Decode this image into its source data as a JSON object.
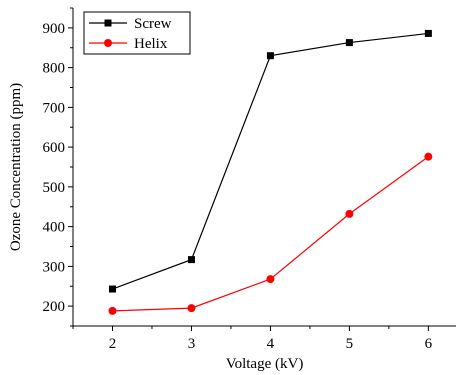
{
  "chart_data": {
    "type": "line",
    "title": "",
    "xlabel": "Voltage (kV)",
    "ylabel": "Ozone Concentration (ppm)",
    "x": [
      2,
      3,
      4,
      5,
      6
    ],
    "xticks": [
      "2",
      "3",
      "4",
      "5",
      "6"
    ],
    "yticks": [
      "200",
      "300",
      "400",
      "500",
      "600",
      "700",
      "800",
      "900"
    ],
    "xlim": [
      1.5,
      6.35
    ],
    "ylim": [
      150,
      950
    ],
    "grid": false,
    "legend_position": "top-left",
    "series": [
      {
        "name": "Screw",
        "values": [
          243,
          317,
          830,
          863,
          886
        ],
        "color": "#000000",
        "marker": "square"
      },
      {
        "name": "Helix",
        "values": [
          188,
          195,
          268,
          432,
          576
        ],
        "color": "#ff0000",
        "marker": "circle"
      }
    ]
  }
}
